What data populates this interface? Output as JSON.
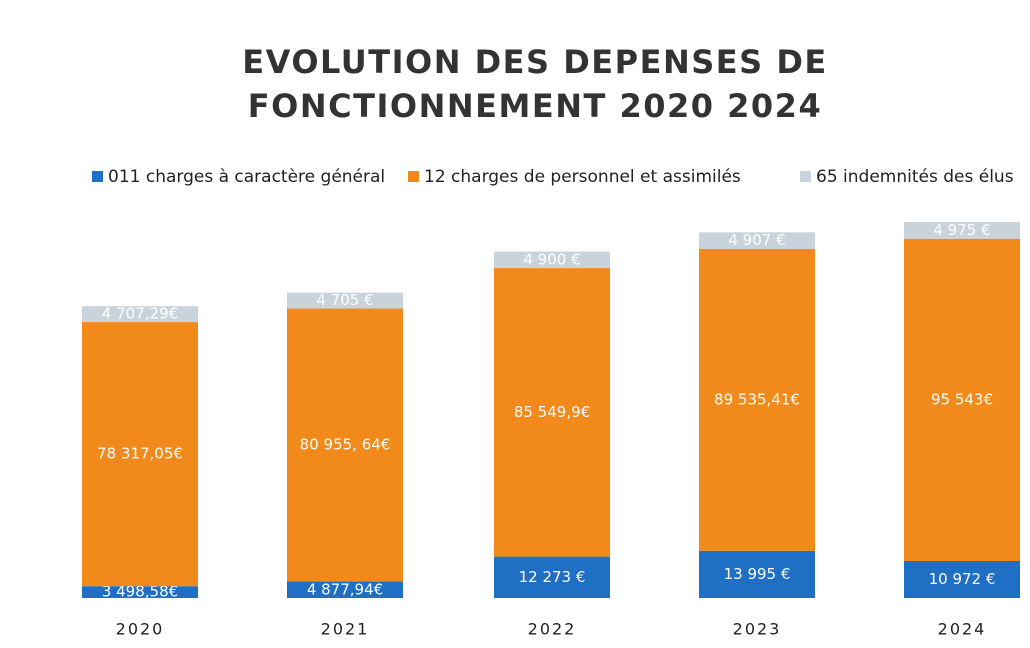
{
  "chart_data": {
    "type": "stacked_bar",
    "title": "EVOLUTION DES DEPENSES DE FONCTIONNEMENT 2020 2024",
    "categories": [
      "2020",
      "2021",
      "2022",
      "2023",
      "2024"
    ],
    "series": [
      {
        "name": "011 charges à caractère général",
        "color": "#1f6fc5",
        "values": [
          3498.58,
          4877.94,
          12273,
          13995,
          10972
        ],
        "value_labels": [
          "3 498,58€",
          "4 877,94€",
          "12 273 €",
          "13 995 €",
          "10 972 €"
        ]
      },
      {
        "name": "12 charges de personnel et assimilés",
        "color": "#f28a1b",
        "values": [
          78317.05,
          80955.64,
          85549.9,
          89535.41,
          95543
        ],
        "value_labels": [
          "78 317,05€",
          "80 955, 64€",
          "85 549,9€",
          "89 535,41€",
          "95 543€"
        ]
      },
      {
        "name": "65 indemnités des élus",
        "color": "#c9d3dc",
        "values": [
          4707.29,
          4705,
          4900,
          4907,
          4975
        ],
        "value_labels": [
          "4 707,29€",
          "4 705 €",
          "4 900 €",
          "4 907 €",
          "4 975 €"
        ]
      }
    ]
  }
}
